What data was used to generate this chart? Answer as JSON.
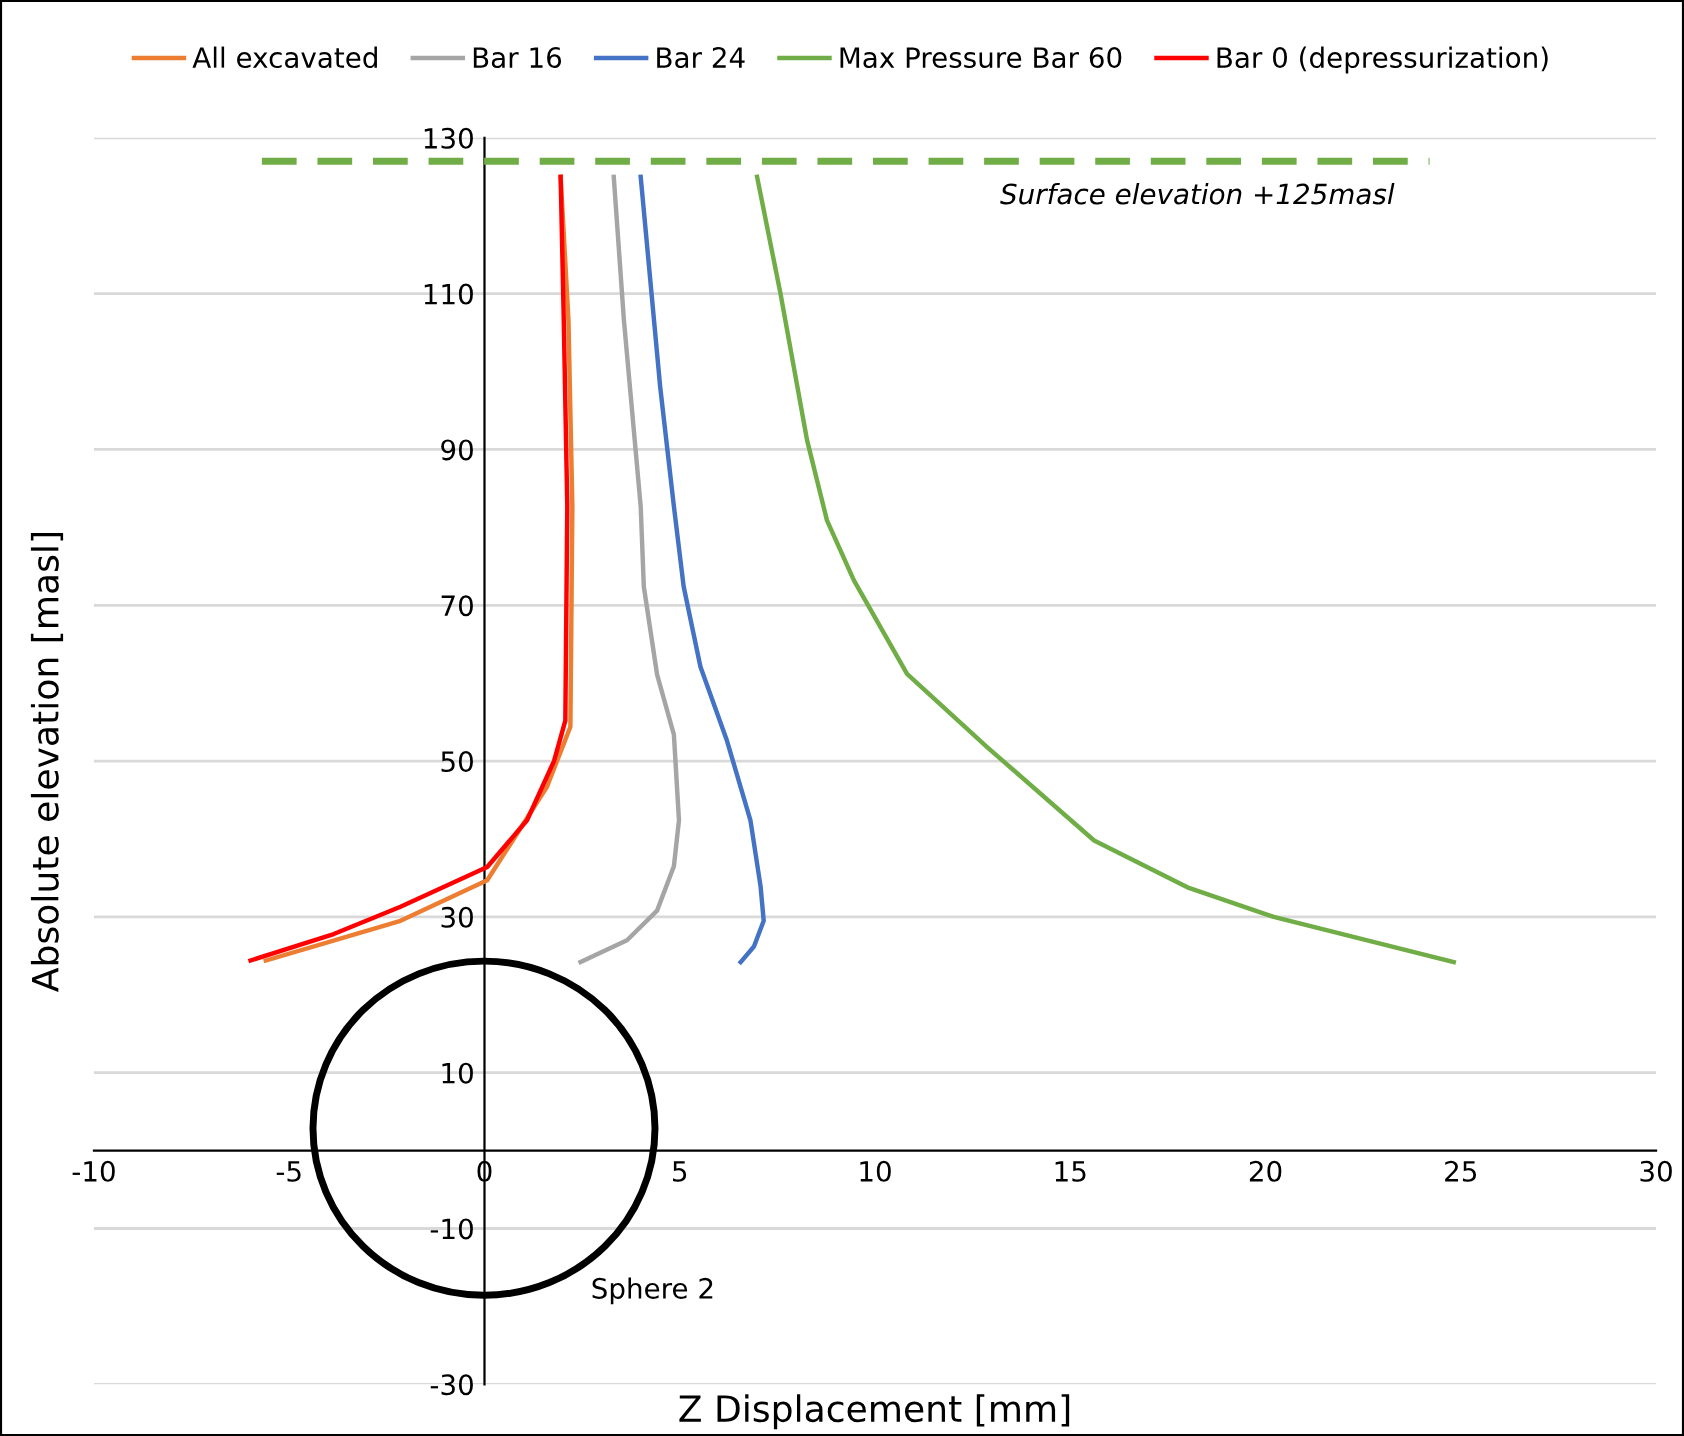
{
  "chart_data": {
    "type": "line",
    "xlabel": "Z Displacement [mm]",
    "ylabel": "Absolute elevation [masl]",
    "xlim": [
      -10,
      30
    ],
    "xticks": [
      -10,
      -5,
      0,
      5,
      10,
      15,
      20,
      25,
      30
    ],
    "ylim": [
      -30,
      130
    ],
    "yticks": [
      -30,
      -10,
      10,
      30,
      50,
      70,
      90,
      110,
      130
    ],
    "grid": "y",
    "legend": "top",
    "marker": "none",
    "series": [
      {
        "name": "All excavated",
        "color": "#ed7d31",
        "x": [
          -5.6,
          -2.15,
          0.07,
          1.6,
          2.2,
          2.25,
          2.15,
          1.95
        ],
        "values": [
          24.4,
          29.5,
          34.7,
          46.7,
          54.4,
          82.7,
          106.6,
          125
        ]
      },
      {
        "name": "Bar 16",
        "color": "#a5a5a5",
        "x": [
          2.46,
          3.65,
          4.42,
          4.85,
          4.98,
          4.85,
          4.42,
          4.08,
          4.0,
          3.57,
          3.31
        ],
        "values": [
          24.2,
          27,
          30.8,
          36.5,
          42.4,
          53.4,
          61.1,
          72.4,
          82.7,
          106.6,
          125
        ]
      },
      {
        "name": "Bar 24",
        "color": "#4472c4",
        "x": [
          6.56,
          6.9,
          7.15,
          7.07,
          6.81,
          6.21,
          5.53,
          5.1,
          4.85,
          4.5,
          4.0
        ],
        "values": [
          24.2,
          26.2,
          29.5,
          33.9,
          42.4,
          52.6,
          62.1,
          72.4,
          82.7,
          98,
          125
        ]
      },
      {
        "name": "Max Pressure Bar 60",
        "color": "#70ad47",
        "x": [
          24.82,
          20.21,
          18.0,
          15.61,
          12.87,
          10.82,
          9.46,
          8.77,
          8.26,
          7.58,
          6.98
        ],
        "values": [
          24.2,
          30,
          33.8,
          39.8,
          51.8,
          61.2,
          73.2,
          80.9,
          91.2,
          110,
          125
        ]
      },
      {
        "name": "Bar 0 (depressurization)",
        "color": "#ff0000",
        "x": [
          -5.99,
          -3.86,
          -2.15,
          0.07,
          1.09,
          1.78,
          2.07,
          2.12,
          2.03,
          1.95
        ],
        "values": [
          24.4,
          27.8,
          31.3,
          36.4,
          42.4,
          50,
          55.2,
          82.7,
          106.6,
          125
        ]
      },
      {
        "color": "#70ad47",
        "line_style": "dashed",
        "x": [
          -5.7,
          24.2
        ],
        "values": [
          127,
          127
        ]
      }
    ],
    "annotations": [
      "Surface elevation +125masl",
      "Sphere 2"
    ]
  }
}
